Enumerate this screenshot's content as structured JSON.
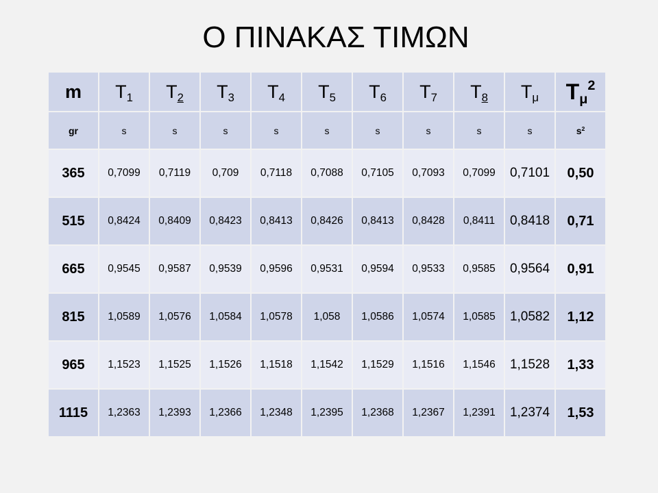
{
  "title": "Ο ΠΙΝΑΚΑΣ ΤΙΜΩΝ",
  "header": {
    "m": "m",
    "T": "T",
    "subs": [
      "1",
      "2",
      "3",
      "4",
      "5",
      "6",
      "7",
      "8"
    ],
    "mu": "μ",
    "sup2": "2"
  },
  "units": {
    "m": "gr",
    "t": [
      "s",
      "s",
      "s",
      "s",
      "s",
      "s",
      "s",
      "s",
      "s"
    ],
    "sq": "s",
    "sq_exp": "2"
  },
  "rows": [
    {
      "m": "365",
      "t": [
        "0,7099",
        "0,7119",
        "0,709",
        "0,7118",
        "0,7088",
        "0,7105",
        "0,7093",
        "0,7099"
      ],
      "mean": "0,7101",
      "sq": "0,50"
    },
    {
      "m": "515",
      "t": [
        "0,8424",
        "0,8409",
        "0,8423",
        "0,8413",
        "0,8426",
        "0,8413",
        "0,8428",
        "0,8411"
      ],
      "mean": "0,8418",
      "sq": "0,71"
    },
    {
      "m": "665",
      "t": [
        "0,9545",
        "0,9587",
        "0,9539",
        "0,9596",
        "0,9531",
        "0,9594",
        "0,9533",
        "0,9585"
      ],
      "mean": "0,9564",
      "sq": "0,91"
    },
    {
      "m": "815",
      "t": [
        "1,0589",
        "1,0576",
        "1,0584",
        "1,0578",
        "1,058",
        "1,0586",
        "1,0574",
        "1,0585"
      ],
      "mean": "1,0582",
      "sq": "1,12"
    },
    {
      "m": "965",
      "t": [
        "1,1523",
        "1,1525",
        "1,1526",
        "1,1518",
        "1,1542",
        "1,1529",
        "1,1516",
        "1,1546"
      ],
      "mean": "1,1528",
      "sq": "1,33"
    },
    {
      "m": "1115",
      "t": [
        "1,2363",
        "1,2393",
        "1,2366",
        "1,2348",
        "1,2395",
        "1,2368",
        "1,2367",
        "1,2391"
      ],
      "mean": "1,2374",
      "sq": "1,53"
    }
  ]
}
